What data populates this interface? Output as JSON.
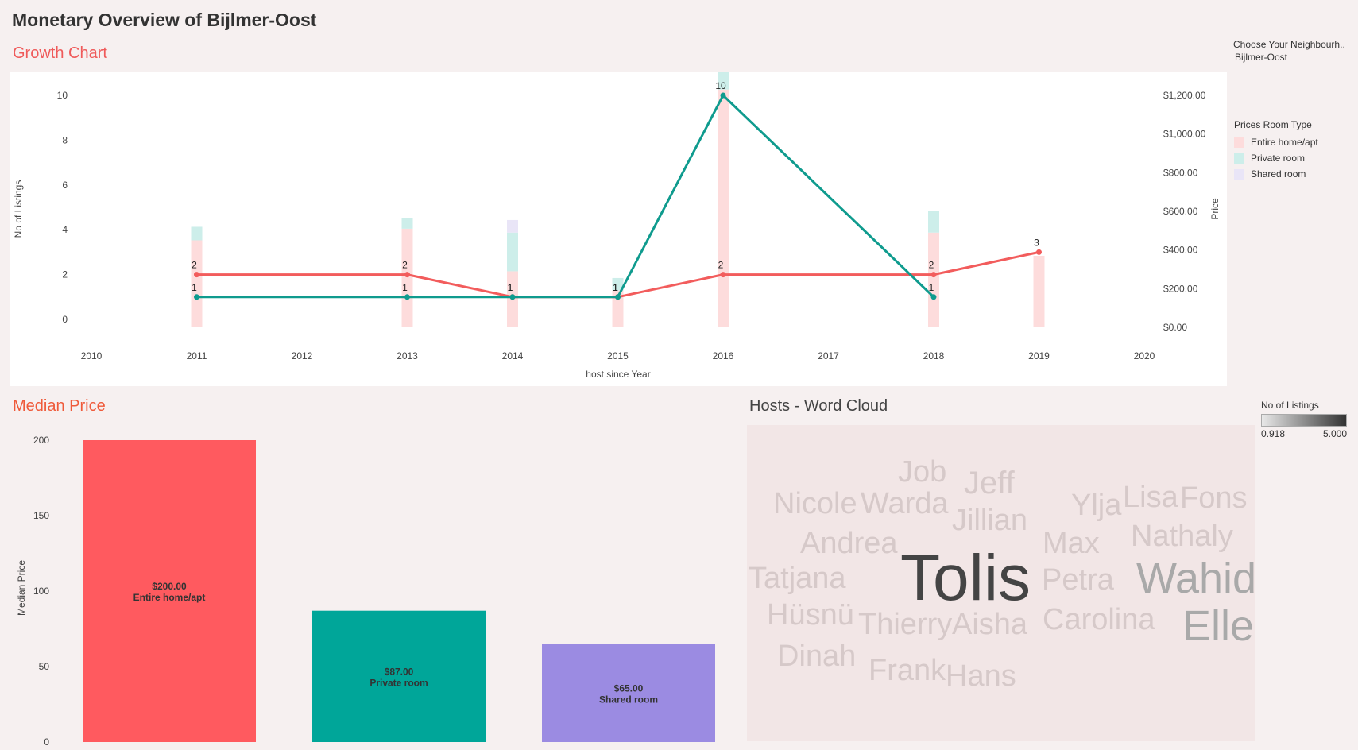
{
  "page": {
    "title": "Monetary Overview of Bijlmer-Oost"
  },
  "filter": {
    "label": "Choose Your Neighbourh..",
    "value": "Bijlmer-Oost"
  },
  "legend": {
    "title": "Prices Room Type",
    "items": [
      {
        "label": "Entire home/apt",
        "color": "#fddcdc"
      },
      {
        "label": "Private room",
        "color": "#cdeeea"
      },
      {
        "label": "Shared room",
        "color": "#e9e5f7"
      }
    ]
  },
  "color_legend": {
    "title": "No of Listings",
    "min": "0.918",
    "max": "5.000"
  },
  "chart_data": [
    {
      "type": "line",
      "title": "Growth Chart",
      "xlabel": "host since Year",
      "ylabel": "No of Listings",
      "y2label": "Price",
      "x_ticks": [
        "2010",
        "2011",
        "2012",
        "2013",
        "2014",
        "2015",
        "2016",
        "2017",
        "2018",
        "2019",
        "2020"
      ],
      "y_ticks": [
        "0",
        "2",
        "4",
        "6",
        "8",
        "10"
      ],
      "y2_ticks": [
        "$0.00",
        "$200.00",
        "$400.00",
        "$600.00",
        "$800.00",
        "$1,000.00",
        "$1,200.00"
      ],
      "xlim": [
        2010,
        2020
      ],
      "ylim": [
        0,
        10
      ],
      "y2lim": [
        0,
        1200
      ],
      "series": [
        {
          "name": "Entire home/apt",
          "color": "#f25c5c",
          "x": [
            2011,
            2013,
            2014,
            2015,
            2016,
            2018,
            2019
          ],
          "y": [
            2,
            2,
            1,
            1,
            2,
            2,
            3
          ]
        },
        {
          "name": "Private room",
          "color": "#0f9b8e",
          "x": [
            2011,
            2013,
            2014,
            2015,
            2016,
            2018
          ],
          "y": [
            1,
            1,
            1,
            1,
            10,
            1
          ]
        }
      ],
      "price_bars": [
        {
          "x": 2011,
          "segments": [
            {
              "type": "Entire home/apt",
              "value": 450
            },
            {
              "type": "Private room",
              "value": 70
            }
          ]
        },
        {
          "x": 2013,
          "segments": [
            {
              "type": "Entire home/apt",
              "value": 510
            },
            {
              "type": "Private room",
              "value": 55
            }
          ]
        },
        {
          "x": 2014,
          "segments": [
            {
              "type": "Entire home/apt",
              "value": 290
            },
            {
              "type": "Private room",
              "value": 200
            },
            {
              "type": "Shared room",
              "value": 65
            }
          ]
        },
        {
          "x": 2015,
          "segments": [
            {
              "type": "Entire home/apt",
              "value": 190
            },
            {
              "type": "Private room",
              "value": 65
            }
          ]
        },
        {
          "x": 2016,
          "segments": [
            {
              "type": "Entire home/apt",
              "value": 1230
            },
            {
              "type": "Private room",
              "value": 840
            }
          ]
        },
        {
          "x": 2018,
          "segments": [
            {
              "type": "Entire home/apt",
              "value": 490
            },
            {
              "type": "Private room",
              "value": 110
            }
          ]
        },
        {
          "x": 2019,
          "segments": [
            {
              "type": "Entire home/apt",
              "value": 370
            }
          ]
        }
      ]
    },
    {
      "type": "bar",
      "title": "Median Price",
      "ylabel": "Median Price",
      "y_ticks": [
        "0",
        "50",
        "100",
        "150",
        "200"
      ],
      "ylim": [
        0,
        200
      ],
      "categories": [
        "Entire home/apt",
        "Private room",
        "Shared room"
      ],
      "values": [
        200,
        87,
        65
      ],
      "value_labels": [
        "$200.00",
        "$87.00",
        "$65.00"
      ],
      "colors": [
        "#ff5a5f",
        "#00a699",
        "#9b8be2"
      ]
    }
  ],
  "word_cloud": {
    "title": "Hosts - Word Cloud",
    "words": [
      {
        "text": "Job",
        "weight": 0.918
      },
      {
        "text": "Jeff",
        "weight": 0.918
      },
      {
        "text": "Nicole",
        "weight": 0.918
      },
      {
        "text": "Warda",
        "weight": 0.918
      },
      {
        "text": "Jillian",
        "weight": 0.918
      },
      {
        "text": "Ylja",
        "weight": 0.918
      },
      {
        "text": "Lisa",
        "weight": 0.918
      },
      {
        "text": "Fons",
        "weight": 0.918
      },
      {
        "text": "Andrea",
        "weight": 0.918
      },
      {
        "text": "Max",
        "weight": 0.918
      },
      {
        "text": "Nathaly",
        "weight": 0.918
      },
      {
        "text": "Tatjana",
        "weight": 0.918
      },
      {
        "text": "Tolis",
        "weight": 5.0
      },
      {
        "text": "Petra",
        "weight": 0.918
      },
      {
        "text": "Wahid",
        "weight": 2.0
      },
      {
        "text": "Hüsnü",
        "weight": 0.918
      },
      {
        "text": "Thierry",
        "weight": 0.918
      },
      {
        "text": "Aisha",
        "weight": 0.918
      },
      {
        "text": "Carolina",
        "weight": 0.918
      },
      {
        "text": "Elle",
        "weight": 2.0
      },
      {
        "text": "Dinah",
        "weight": 0.918
      },
      {
        "text": "Frank",
        "weight": 0.918
      },
      {
        "text": "Hans",
        "weight": 0.918
      }
    ]
  }
}
